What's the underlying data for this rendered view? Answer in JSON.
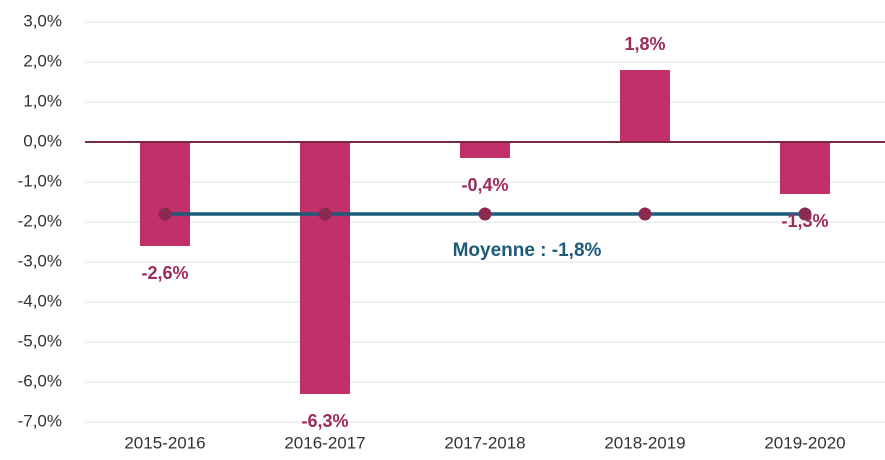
{
  "chart_data": {
    "type": "bar",
    "categories": [
      "2015-2016",
      "2016-2017",
      "2017-2018",
      "2018-2019",
      "2019-2020"
    ],
    "values": [
      -2.6,
      -6.3,
      -0.4,
      1.8,
      -1.3
    ],
    "value_labels": [
      "-2,6%",
      "-6,3%",
      "-0,4%",
      "1,8%",
      "-1,3%"
    ],
    "color": "#c2306c",
    "average": {
      "values": [
        -1.8,
        -1.8,
        -1.8,
        -1.8,
        -1.8
      ],
      "label": "Moyenne : -1,8%",
      "color": "#1d5b78",
      "marker_color": "#8a2a50"
    },
    "ylim": [
      -7,
      3
    ],
    "yticks": [
      {
        "value": -7,
        "label": "-7,0%"
      },
      {
        "value": -6,
        "label": "-6,0%"
      },
      {
        "value": -5,
        "label": "-5,0%"
      },
      {
        "value": -4,
        "label": "-4,0%"
      },
      {
        "value": -3,
        "label": "-3,0%"
      },
      {
        "value": -2,
        "label": "-2,0%"
      },
      {
        "value": -1,
        "label": "-1,0%"
      },
      {
        "value": 0,
        "label": "0,0%"
      },
      {
        "value": 1,
        "label": "1,0%"
      },
      {
        "value": 2,
        "label": "2,0%"
      },
      {
        "value": 3,
        "label": "3,0%"
      }
    ],
    "grid": true
  }
}
